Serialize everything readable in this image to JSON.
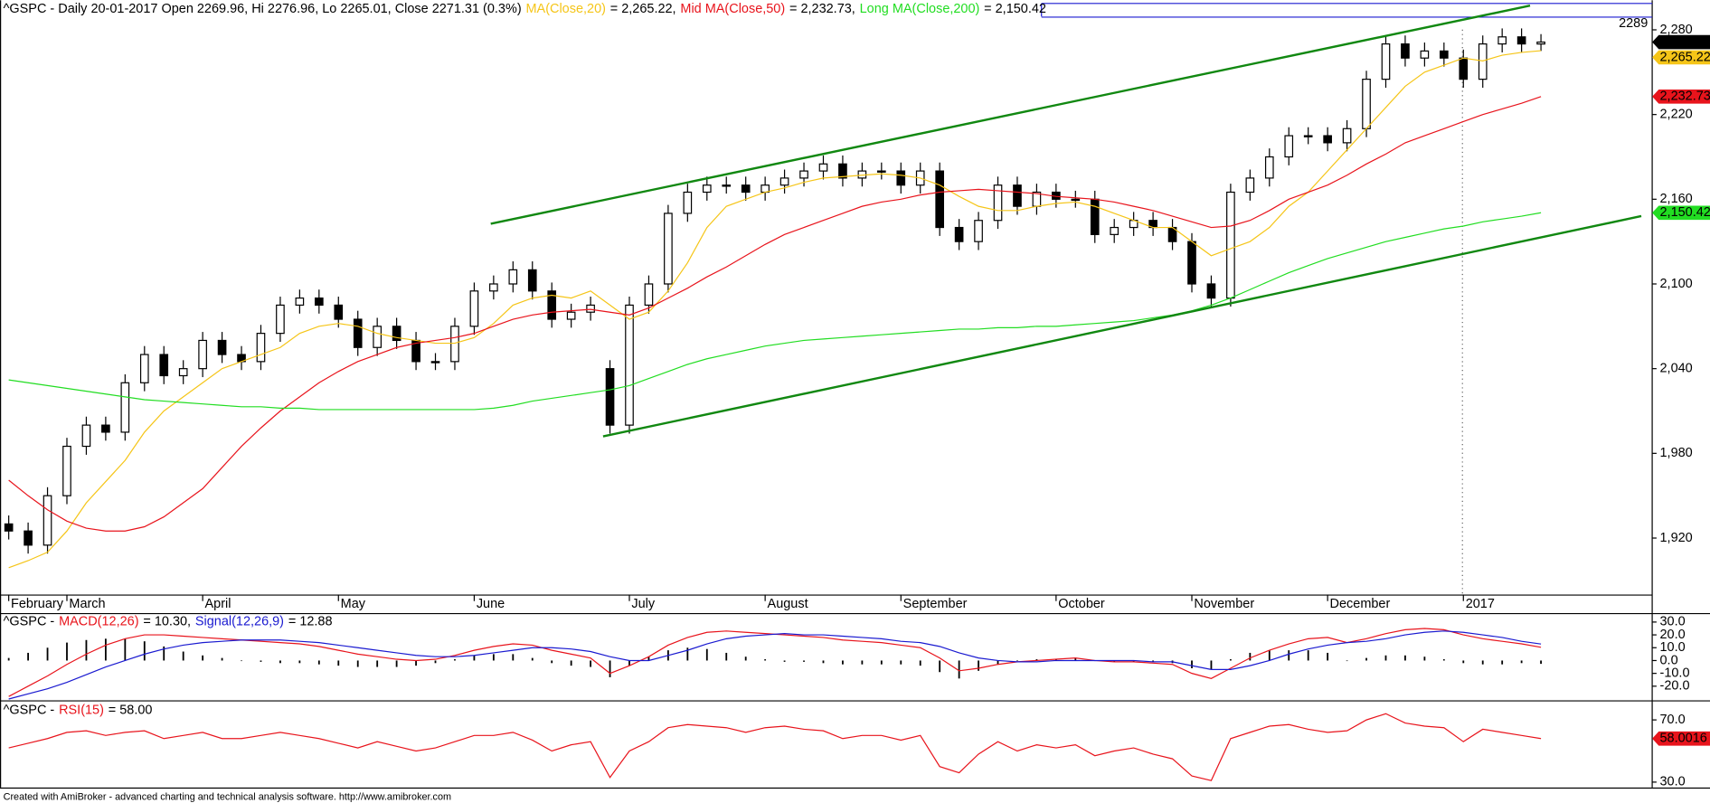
{
  "chart_data": [
    {
      "type": "candlestick",
      "title": "^GSPC - Daily 20-01-2017 Open 2269.96, Hi 2276.96, Lo 2265.01, Close 2271.31 (0.3%)",
      "categories": [
        "February",
        null,
        null,
        "March",
        null,
        null,
        null,
        null,
        null,
        null,
        "April",
        null,
        null,
        null,
        null,
        null,
        null,
        "May",
        null,
        null,
        null,
        null,
        null,
        null,
        "June",
        null,
        null,
        null,
        null,
        null,
        null,
        null,
        "July",
        null,
        null,
        null,
        null,
        null,
        null,
        "August",
        null,
        null,
        null,
        null,
        null,
        null,
        "September",
        null,
        null,
        null,
        null,
        null,
        null,
        null,
        "October",
        null,
        null,
        null,
        null,
        null,
        null,
        "November",
        null,
        null,
        null,
        null,
        null,
        null,
        "December",
        null,
        null,
        null,
        null,
        null,
        null,
        "2017",
        null,
        null,
        null,
        null
      ],
      "open": [
        1930,
        1925,
        1915,
        1950,
        1985,
        2000,
        1995,
        2030,
        2050,
        2035,
        2040,
        2060,
        2050,
        2045,
        2065,
        2085,
        2090,
        2085,
        2075,
        2055,
        2070,
        2060,
        2045,
        2045,
        2070,
        2095,
        2100,
        2110,
        2095,
        2075,
        2080,
        2040,
        2000,
        2085,
        2100,
        2150,
        2165,
        2170,
        2170,
        2165,
        2170,
        2175,
        2180,
        2185,
        2175,
        2180,
        2180,
        2170,
        2180,
        2140,
        2130,
        2145,
        2170,
        2155,
        2165,
        2160,
        2160,
        2135,
        2140,
        2145,
        2140,
        2130,
        2100,
        2090,
        2165,
        2175,
        2190,
        2205,
        2205,
        2200,
        2210,
        2245,
        2270,
        2260,
        2265,
        2260,
        2245,
        2270,
        2275,
        2269.96
      ],
      "high": [
        1936,
        1931,
        1956,
        1991,
        2006,
        2006,
        2036,
        2056,
        2056,
        2046,
        2066,
        2066,
        2056,
        2071,
        2091,
        2096,
        2096,
        2091,
        2081,
        2076,
        2076,
        2066,
        2051,
        2076,
        2101,
        2106,
        2116,
        2116,
        2101,
        2086,
        2091,
        2046,
        2091,
        2106,
        2156,
        2171,
        2176,
        2176,
        2176,
        2176,
        2181,
        2186,
        2191,
        2191,
        2186,
        2186,
        2186,
        2186,
        2186,
        2146,
        2151,
        2176,
        2176,
        2171,
        2171,
        2166,
        2166,
        2146,
        2151,
        2151,
        2146,
        2136,
        2106,
        2171,
        2181,
        2196,
        2211,
        2211,
        2211,
        2216,
        2251,
        2276,
        2276,
        2271,
        2271,
        2266,
        2276,
        2281,
        2281,
        2276.96
      ],
      "low": [
        1919,
        1909,
        1909,
        1944,
        1979,
        1989,
        1989,
        2024,
        2029,
        2029,
        2034,
        2044,
        2039,
        2039,
        2059,
        2079,
        2079,
        2069,
        2049,
        2049,
        2054,
        2039,
        2039,
        2039,
        2064,
        2089,
        2094,
        2089,
        2069,
        2069,
        2074,
        1994,
        1994,
        2079,
        2094,
        2144,
        2159,
        2164,
        2159,
        2159,
        2164,
        2169,
        2174,
        2169,
        2169,
        2174,
        2164,
        2164,
        2134,
        2124,
        2124,
        2139,
        2149,
        2149,
        2154,
        2154,
        2129,
        2129,
        2134,
        2134,
        2124,
        2094,
        2084,
        2084,
        2159,
        2169,
        2184,
        2199,
        2194,
        2194,
        2204,
        2239,
        2254,
        2254,
        2254,
        2239,
        2239,
        2264,
        2264,
        2265.01
      ],
      "close": [
        1925,
        1915,
        1950,
        1985,
        2000,
        1995,
        2030,
        2050,
        2035,
        2040,
        2060,
        2050,
        2045,
        2065,
        2085,
        2090,
        2085,
        2075,
        2055,
        2070,
        2060,
        2045,
        2045,
        2070,
        2095,
        2100,
        2110,
        2095,
        2075,
        2080,
        2085,
        2000,
        2085,
        2100,
        2150,
        2165,
        2170,
        2170,
        2165,
        2170,
        2175,
        2180,
        2185,
        2175,
        2180,
        2180,
        2170,
        2180,
        2140,
        2130,
        2145,
        2170,
        2155,
        2165,
        2160,
        2160,
        2135,
        2140,
        2145,
        2140,
        2130,
        2100,
        2090,
        2165,
        2175,
        2190,
        2205,
        2205,
        2200,
        2210,
        2245,
        2270,
        2260,
        2265,
        2260,
        2245,
        2270,
        2275,
        2270,
        2271.31
      ],
      "close_label": "2,271.31",
      "up_color": "#ffffff",
      "down_color": "#000000",
      "series": [
        {
          "name": "MA(Close,20)",
          "legend_value": "= 2,265.22,",
          "last_value_label": "2,265.22",
          "color": "#f5c518",
          "values": [
            1899,
            1904,
            1910,
            1925,
            1945,
            1960,
            1975,
            1995,
            2010,
            2020,
            2030,
            2040,
            2045,
            2050,
            2055,
            2065,
            2070,
            2072,
            2070,
            2065,
            2062,
            2060,
            2058,
            2058,
            2062,
            2072,
            2085,
            2090,
            2092,
            2090,
            2095,
            2085,
            2075,
            2080,
            2095,
            2115,
            2140,
            2155,
            2160,
            2165,
            2168,
            2172,
            2175,
            2176,
            2177,
            2178,
            2177,
            2175,
            2170,
            2162,
            2155,
            2152,
            2152,
            2155,
            2157,
            2158,
            2155,
            2150,
            2145,
            2140,
            2140,
            2130,
            2120,
            2125,
            2130,
            2140,
            2155,
            2165,
            2180,
            2195,
            2210,
            2225,
            2240,
            2250,
            2255,
            2260,
            2258,
            2262,
            2264,
            2265.22
          ]
        },
        {
          "name": "Mid MA(Close,50)",
          "legend_value": "= 2,232.73,",
          "last_value_label": "2,232.73",
          "color": "#e8141c",
          "values": [
            1961,
            1950,
            1940,
            1932,
            1927,
            1925,
            1925,
            1928,
            1935,
            1945,
            1955,
            1970,
            1985,
            1998,
            2010,
            2020,
            2030,
            2038,
            2045,
            2050,
            2055,
            2058,
            2060,
            2062,
            2065,
            2070,
            2075,
            2078,
            2080,
            2081,
            2082,
            2080,
            2078,
            2083,
            2090,
            2097,
            2105,
            2112,
            2120,
            2128,
            2135,
            2140,
            2145,
            2150,
            2155,
            2158,
            2160,
            2163,
            2165,
            2166,
            2167,
            2166,
            2165,
            2164,
            2162,
            2161,
            2160,
            2158,
            2155,
            2152,
            2148,
            2144,
            2140,
            2141,
            2145,
            2152,
            2160,
            2165,
            2170,
            2177,
            2185,
            2192,
            2200,
            2205,
            2210,
            2215,
            2220,
            2224,
            2228,
            2232.73
          ]
        },
        {
          "name": "Long MA(Close,200)",
          "legend_value": "= 2,150.42",
          "last_value_label": "2,150.42",
          "color": "#22dd22",
          "values": [
            2032,
            2030,
            2028,
            2026,
            2024,
            2022,
            2020,
            2018,
            2017,
            2016,
            2015,
            2014,
            2013,
            2013,
            2012,
            2012,
            2011,
            2011,
            2011,
            2011,
            2011,
            2011,
            2011,
            2011,
            2011,
            2012,
            2014,
            2017,
            2019,
            2021,
            2023,
            2025,
            2028,
            2033,
            2038,
            2043,
            2047,
            2050,
            2053,
            2056,
            2058,
            2060,
            2061,
            2062,
            2063,
            2064,
            2065,
            2066,
            2067,
            2068,
            2068,
            2069,
            2069,
            2070,
            2070,
            2071,
            2072,
            2073,
            2074,
            2076,
            2078,
            2081,
            2085,
            2090,
            2096,
            2102,
            2108,
            2113,
            2118,
            2122,
            2126,
            2130,
            2133,
            2136,
            2139,
            2141,
            2144,
            2146,
            2148,
            2150.42
          ]
        }
      ],
      "hline": 2289,
      "hline_color": "#1a1ad0",
      "ylim": [
        1880,
        2301
      ],
      "yticks": [
        {
          "value": 1920,
          "label": "1,920"
        },
        {
          "value": 1980,
          "label": "1,980"
        },
        {
          "value": 2040,
          "label": "2,040"
        },
        {
          "value": 2100,
          "label": "2,100"
        },
        {
          "value": 2160,
          "label": "2,160"
        },
        {
          "value": 2220,
          "label": "2,220"
        },
        {
          "value": 2280,
          "label": "2,280"
        }
      ]
    },
    {
      "type": "macd",
      "title": "^GSPC -",
      "series": [
        {
          "name": "MACD(12,26)",
          "legend_value": "= 10.30,",
          "color": "#e8141c",
          "values": [
            -28,
            -20,
            -12,
            -3,
            5,
            12,
            17,
            20,
            20,
            19,
            18,
            17,
            16,
            15,
            14,
            13,
            11,
            8,
            5,
            3,
            1,
            0,
            1,
            4,
            8,
            11,
            13,
            12,
            8,
            5,
            2,
            -10,
            -4,
            3,
            12,
            18,
            22,
            23,
            22,
            21,
            20,
            19,
            18,
            16,
            15,
            14,
            12,
            10,
            2,
            -8,
            -6,
            -3,
            -1,
            0,
            1,
            2,
            0,
            -1,
            -1,
            -2,
            -3,
            -10,
            -14,
            -6,
            2,
            8,
            13,
            17,
            18,
            14,
            17,
            21,
            24,
            25,
            24,
            20,
            17,
            15,
            13,
            10.3
          ]
        },
        {
          "name": "Signal(12,26,9)",
          "legend_value": "= 12.88",
          "color": "#1a1ad0",
          "values": [
            -30,
            -26,
            -22,
            -17,
            -11,
            -5,
            0,
            5,
            9,
            12,
            14,
            15,
            16,
            16,
            16,
            15,
            14,
            12,
            10,
            8,
            6,
            4,
            3,
            3,
            4,
            6,
            8,
            10,
            10,
            9,
            7,
            3,
            0,
            0,
            4,
            8,
            13,
            17,
            19,
            20,
            21,
            20,
            20,
            19,
            18,
            17,
            15,
            14,
            11,
            6,
            2,
            0,
            -1,
            -1,
            0,
            0,
            0,
            0,
            0,
            -1,
            -1,
            -4,
            -7,
            -7,
            -4,
            0,
            5,
            9,
            12,
            14,
            15,
            17,
            20,
            22,
            23,
            22,
            20,
            18,
            15,
            12.88
          ]
        }
      ],
      "histogram": [
        2,
        6,
        10,
        14,
        16,
        17,
        17,
        15,
        11,
        7,
        4,
        2,
        0,
        -1,
        -2,
        -2,
        -3,
        -4,
        -5,
        -5,
        -5,
        -4,
        -2,
        1,
        4,
        5,
        5,
        2,
        -2,
        -4,
        -5,
        -13,
        -4,
        3,
        8,
        10,
        9,
        6,
        3,
        1,
        -1,
        -1,
        -2,
        -3,
        -3,
        -3,
        -3,
        -4,
        -9,
        -14,
        -8,
        -3,
        0,
        1,
        1,
        2,
        0,
        -1,
        -1,
        -1,
        -2,
        -6,
        -7,
        1,
        6,
        8,
        8,
        8,
        6,
        0,
        2,
        4,
        4,
        3,
        1,
        -2,
        -3,
        -3,
        -2,
        -2.58
      ],
      "histogram_color": "#000000",
      "ylim": [
        -31,
        37
      ],
      "yticks": [
        {
          "value": 30,
          "label": "30.0"
        },
        {
          "value": 20,
          "label": "20.0"
        },
        {
          "value": 10,
          "label": "10.0"
        },
        {
          "value": 0,
          "label": "0.0"
        },
        {
          "value": -10,
          "label": "-10.0"
        },
        {
          "value": -20,
          "label": "-20.0"
        }
      ]
    },
    {
      "type": "line",
      "title": "^GSPC -",
      "series": [
        {
          "name": "RSI(15)",
          "legend_value": "= 58.00",
          "last_value_label": "58.0016",
          "color": "#e8141c",
          "values": [
            52,
            55,
            58,
            62,
            63,
            60,
            62,
            63,
            58,
            60,
            62,
            58,
            58,
            60,
            62,
            60,
            58,
            55,
            52,
            56,
            53,
            50,
            52,
            56,
            60,
            60,
            62,
            57,
            50,
            54,
            56,
            33,
            50,
            56,
            65,
            67,
            66,
            65,
            62,
            65,
            66,
            64,
            63,
            58,
            60,
            60,
            57,
            60,
            40,
            36,
            48,
            56,
            50,
            54,
            52,
            54,
            47,
            50,
            52,
            48,
            45,
            34,
            31,
            58,
            62,
            66,
            67,
            64,
            62,
            63,
            70,
            74,
            68,
            66,
            65,
            56,
            64,
            62,
            60,
            58.0016
          ]
        }
      ],
      "ylim": [
        26.5,
        81.2
      ],
      "yticks": [
        {
          "value": 70,
          "label": "70.0"
        },
        {
          "value": 30,
          "label": "30.0"
        }
      ]
    }
  ],
  "footer": "Created with AmiBroker - advanced charting and technical analysis software. http://www.amibroker.com"
}
